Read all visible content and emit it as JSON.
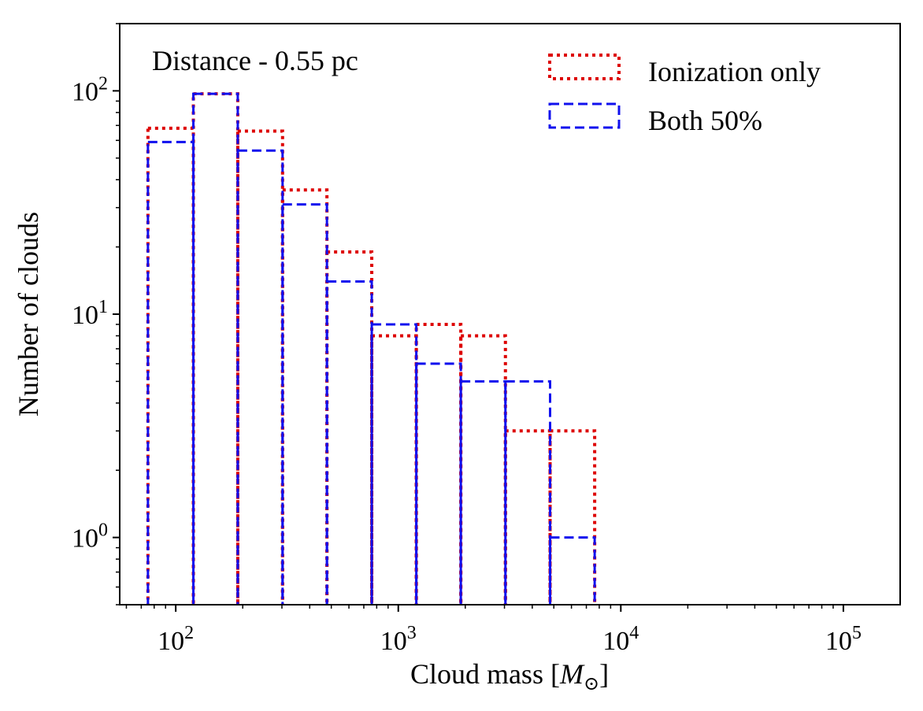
{
  "chart_data": {
    "type": "bar",
    "subtype": "step-histogram",
    "annotation": "Distance - 0.55 pc",
    "xlabel": {
      "text": "Cloud mass [",
      "math_symbol": "M",
      "math_subscript": "⊙",
      "close": "]"
    },
    "ylabel": "Number of clouds",
    "xscale": "log",
    "yscale": "log",
    "xlim": [
      56,
      180000
    ],
    "ylim": [
      0.5,
      200
    ],
    "x_ticks": [
      {
        "value": 100,
        "base": "10",
        "exp": "2"
      },
      {
        "value": 1000,
        "base": "10",
        "exp": "3"
      },
      {
        "value": 10000,
        "base": "10",
        "exp": "4"
      },
      {
        "value": 100000,
        "base": "10",
        "exp": "5"
      }
    ],
    "y_ticks": [
      {
        "value": 1,
        "base": "10",
        "exp": "0"
      },
      {
        "value": 10,
        "base": "10",
        "exp": "1"
      },
      {
        "value": 100,
        "base": "10",
        "exp": "2"
      }
    ],
    "bin_edges": [
      75,
      120,
      190,
      302,
      478,
      760,
      1205,
      1910,
      3030,
      4810,
      7630
    ],
    "legend_position": "top-right",
    "grid": false,
    "series": [
      {
        "name": "Ionization only",
        "color": "#dd0000",
        "line_style": "dotted",
        "values": [
          68,
          97,
          66,
          36,
          19,
          8,
          9,
          8,
          3,
          3
        ]
      },
      {
        "name": "Both 50%",
        "color": "#1010ee",
        "line_style": "dashed",
        "values": [
          59,
          97,
          54,
          31,
          14,
          9,
          6,
          5,
          5,
          1
        ]
      }
    ]
  }
}
